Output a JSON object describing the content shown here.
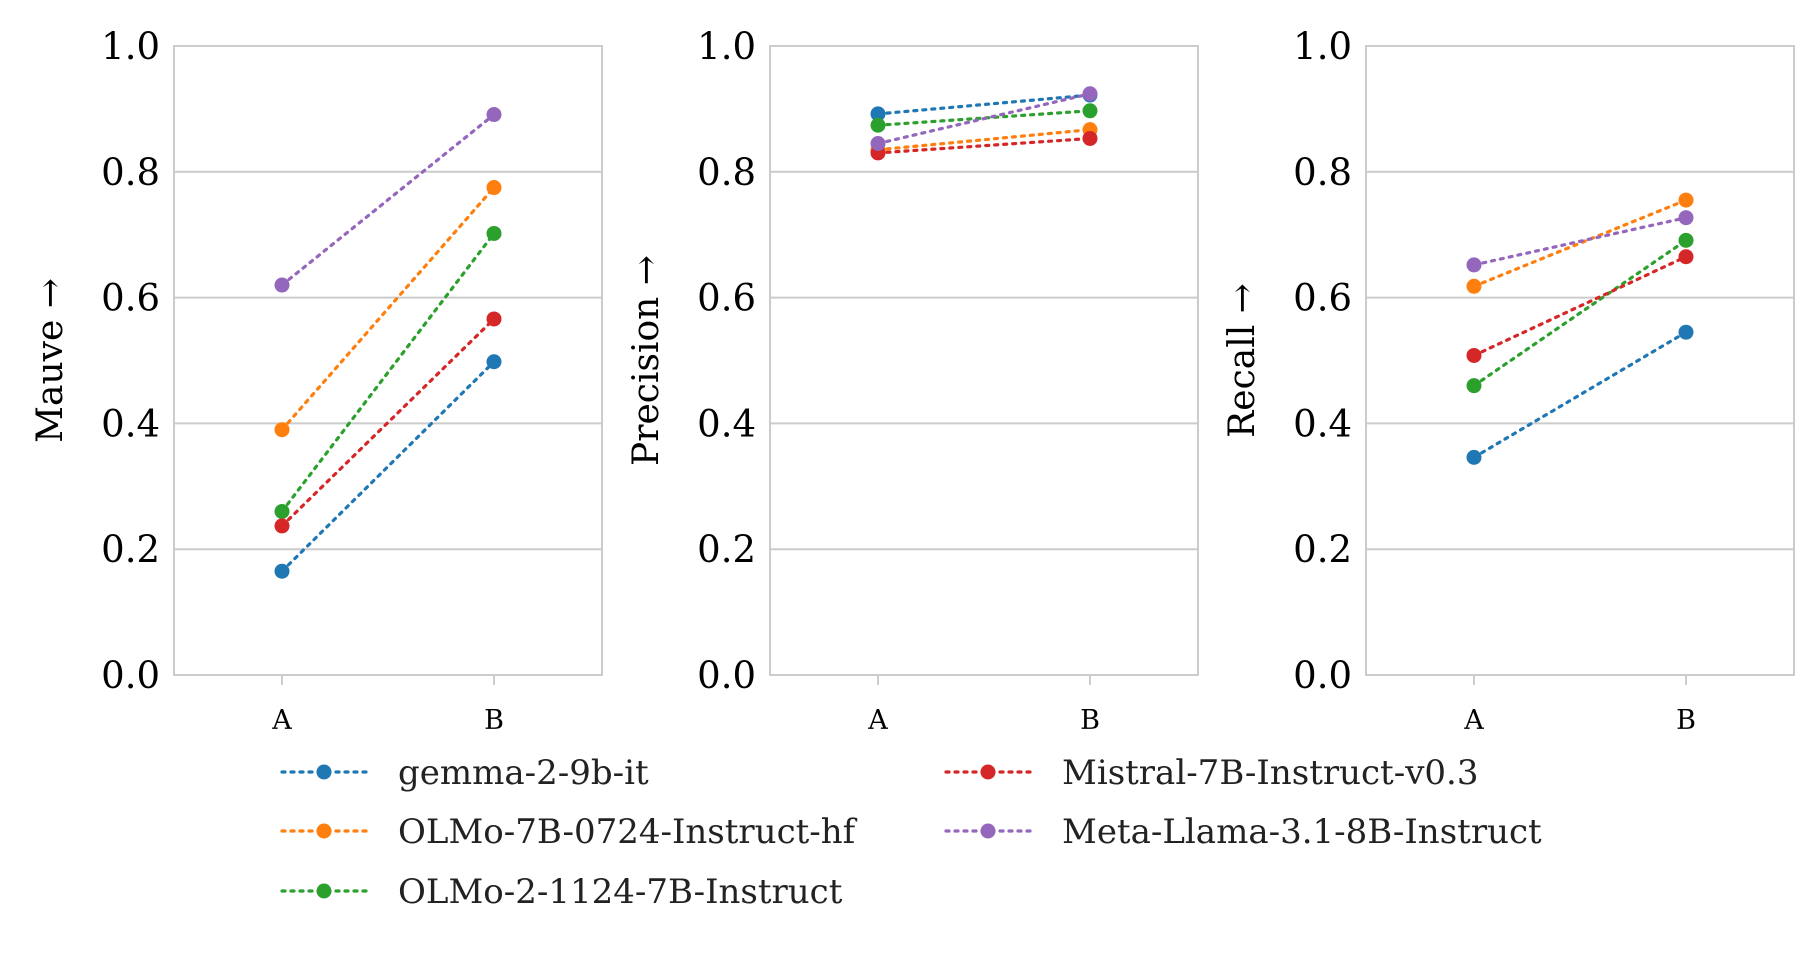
{
  "chart_data": [
    {
      "type": "line",
      "ylabel": "Mauve →",
      "categories": [
        "A",
        "B"
      ],
      "ylim": [
        0.0,
        1.0
      ],
      "yticks": [
        "0.0",
        "0.2",
        "0.4",
        "0.6",
        "0.8",
        "1.0"
      ],
      "series": [
        {
          "name": "gemma-2-9b-it",
          "color": "#1f77b4",
          "values": [
            0.165,
            0.498
          ]
        },
        {
          "name": "OLMo-7B-0724-Instruct-hf",
          "color": "#ff7f0e",
          "values": [
            0.39,
            0.775
          ]
        },
        {
          "name": "OLMo-2-1124-7B-Instruct",
          "color": "#2ca02c",
          "values": [
            0.26,
            0.702
          ]
        },
        {
          "name": "Mistral-7B-Instruct-v0.3",
          "color": "#d62728",
          "values": [
            0.237,
            0.566
          ]
        },
        {
          "name": "Meta-Llama-3.1-8B-Instruct",
          "color": "#9467bd",
          "values": [
            0.62,
            0.891
          ]
        }
      ]
    },
    {
      "type": "line",
      "ylabel": "Precision →",
      "categories": [
        "A",
        "B"
      ],
      "ylim": [
        0.0,
        1.0
      ],
      "yticks": [
        "0.0",
        "0.2",
        "0.4",
        "0.6",
        "0.8",
        "1.0"
      ],
      "series": [
        {
          "name": "gemma-2-9b-it",
          "color": "#1f77b4",
          "values": [
            0.892,
            0.922
          ]
        },
        {
          "name": "OLMo-7B-0724-Instruct-hf",
          "color": "#ff7f0e",
          "values": [
            0.835,
            0.867
          ]
        },
        {
          "name": "OLMo-2-1124-7B-Instruct",
          "color": "#2ca02c",
          "values": [
            0.874,
            0.897
          ]
        },
        {
          "name": "Mistral-7B-Instruct-v0.3",
          "color": "#d62728",
          "values": [
            0.83,
            0.853
          ]
        },
        {
          "name": "Meta-Llama-3.1-8B-Instruct",
          "color": "#9467bd",
          "values": [
            0.845,
            0.924
          ]
        }
      ]
    },
    {
      "type": "line",
      "ylabel": "Recall →",
      "categories": [
        "A",
        "B"
      ],
      "ylim": [
        0.0,
        1.0
      ],
      "yticks": [
        "0.0",
        "0.2",
        "0.4",
        "0.6",
        "0.8",
        "1.0"
      ],
      "series": [
        {
          "name": "gemma-2-9b-it",
          "color": "#1f77b4",
          "values": [
            0.346,
            0.545
          ]
        },
        {
          "name": "OLMo-7B-0724-Instruct-hf",
          "color": "#ff7f0e",
          "values": [
            0.618,
            0.755
          ]
        },
        {
          "name": "OLMo-2-1124-7B-Instruct",
          "color": "#2ca02c",
          "values": [
            0.46,
            0.691
          ]
        },
        {
          "name": "Mistral-7B-Instruct-v0.3",
          "color": "#d62728",
          "values": [
            0.508,
            0.665
          ]
        },
        {
          "name": "Meta-Llama-3.1-8B-Instruct",
          "color": "#9467bd",
          "values": [
            0.652,
            0.727
          ]
        }
      ]
    }
  ],
  "legend": {
    "columns": 2,
    "entries": [
      {
        "name": "gemma-2-9b-it",
        "color": "#1f77b4"
      },
      {
        "name": "OLMo-7B-0724-Instruct-hf",
        "color": "#ff7f0e"
      },
      {
        "name": "OLMo-2-1124-7B-Instruct",
        "color": "#2ca02c"
      },
      {
        "name": "Mistral-7B-Instruct-v0.3",
        "color": "#d62728"
      },
      {
        "name": "Meta-Llama-3.1-8B-Instruct",
        "color": "#9467bd"
      }
    ]
  }
}
